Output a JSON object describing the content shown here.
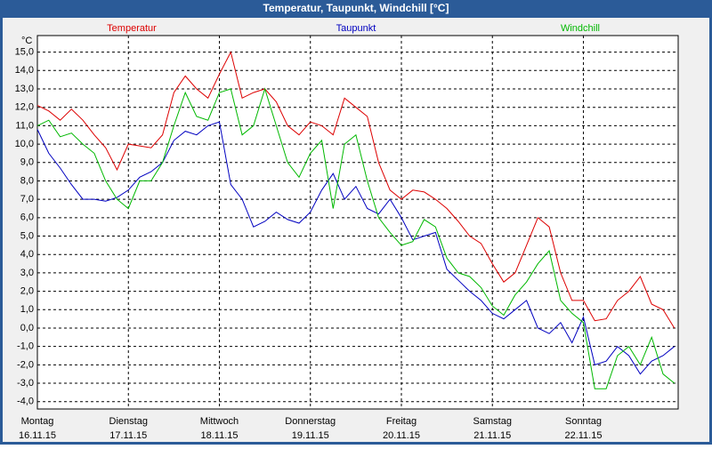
{
  "window_title": "Temperatur, Taupunkt, Windchill [°C]",
  "chart_data": {
    "type": "line",
    "unit_label": "°C",
    "x": [
      0,
      3,
      6,
      9,
      12,
      15,
      18,
      21,
      24,
      27,
      30,
      33,
      36,
      39,
      42,
      45,
      48,
      51,
      54,
      57,
      60,
      63,
      66,
      69,
      72,
      75,
      78,
      81,
      84,
      87,
      90,
      93,
      96,
      99,
      102,
      105,
      108,
      111,
      114,
      117,
      120,
      123,
      126,
      129,
      132,
      135,
      138,
      141,
      144,
      147,
      150,
      153,
      156,
      159,
      162,
      165,
      168
    ],
    "series": [
      {
        "name": "Temperatur",
        "color": "#dd0000",
        "values": [
          12.1,
          11.8,
          11.3,
          11.9,
          11.3,
          10.5,
          9.8,
          8.6,
          10.0,
          9.9,
          9.8,
          10.5,
          12.8,
          13.7,
          13.0,
          12.5,
          13.8,
          15.0,
          12.5,
          12.8,
          13.0,
          12.3,
          11.0,
          10.5,
          11.2,
          11.0,
          10.5,
          12.5,
          12.0,
          11.5,
          9.0,
          7.5,
          7.0,
          7.5,
          7.4,
          7.0,
          6.5,
          5.8,
          5.0,
          4.6,
          3.5,
          2.5,
          3.0,
          4.5,
          6.0,
          5.5,
          3.0,
          1.5,
          1.5,
          0.4,
          0.5,
          1.5,
          2.0,
          2.8,
          1.3,
          1.0,
          0.0
        ]
      },
      {
        "name": "Taupunkt",
        "color": "#0000c0",
        "values": [
          10.8,
          9.5,
          8.7,
          7.8,
          7.0,
          7.0,
          6.9,
          7.1,
          7.5,
          8.2,
          8.5,
          9.0,
          10.2,
          10.7,
          10.5,
          11.0,
          11.2,
          7.8,
          7.0,
          5.5,
          5.8,
          6.3,
          5.9,
          5.7,
          6.3,
          7.5,
          8.4,
          7.0,
          7.7,
          6.5,
          6.2,
          7.0,
          6.0,
          4.8,
          5.0,
          5.2,
          3.2,
          2.6,
          2.0,
          1.5,
          0.8,
          0.5,
          1.0,
          1.5,
          0.0,
          -0.3,
          0.3,
          -0.8,
          0.6,
          -2.0,
          -1.8,
          -1.0,
          -1.5,
          -2.5,
          -1.8,
          -1.5,
          -1.0
        ]
      },
      {
        "name": "Windchill",
        "color": "#00b800",
        "values": [
          11.0,
          11.3,
          10.4,
          10.6,
          10.0,
          9.5,
          8.0,
          7.0,
          6.5,
          8.0,
          8.0,
          9.0,
          11.0,
          12.8,
          11.5,
          11.3,
          12.8,
          13.0,
          10.5,
          11.0,
          13.0,
          11.0,
          9.0,
          8.2,
          9.5,
          10.2,
          6.5,
          10.0,
          10.5,
          8.0,
          6.0,
          5.2,
          4.5,
          4.7,
          5.9,
          5.5,
          3.8,
          3.0,
          2.8,
          2.2,
          1.2,
          0.7,
          1.8,
          2.5,
          3.5,
          4.2,
          1.5,
          0.8,
          0.3,
          -3.3,
          -3.3,
          -1.5,
          -1.0,
          -2.0,
          -0.5,
          -2.5,
          -3.0
        ]
      }
    ],
    "xlim": [
      0,
      169
    ],
    "xticks": [
      {
        "value": 0,
        "label": "Montag"
      },
      {
        "value": 24,
        "label": "Dienstag"
      },
      {
        "value": 48,
        "label": "Mittwoch"
      },
      {
        "value": 72,
        "label": "Donnerstag"
      },
      {
        "value": 96,
        "label": "Freitag"
      },
      {
        "value": 120,
        "label": "Samstag"
      },
      {
        "value": 144,
        "label": "Sonntag"
      }
    ],
    "xtick_dates": [
      "16.11.15",
      "17.11.15",
      "18.11.15",
      "19.11.15",
      "20.11.15",
      "21.11.15",
      "22.11.15"
    ],
    "ylim": [
      -4.4,
      15.9
    ],
    "yticks": [
      {
        "value": 15,
        "label": "15,0"
      },
      {
        "value": 14,
        "label": "14,0"
      },
      {
        "value": 13,
        "label": "13,0"
      },
      {
        "value": 12,
        "label": "12,0"
      },
      {
        "value": 11,
        "label": "11,0"
      },
      {
        "value": 10,
        "label": "10,0"
      },
      {
        "value": 9,
        "label": "9,0"
      },
      {
        "value": 8,
        "label": "8,0"
      },
      {
        "value": 7,
        "label": "7,0"
      },
      {
        "value": 6,
        "label": "6,0"
      },
      {
        "value": 5,
        "label": "5,0"
      },
      {
        "value": 4,
        "label": "4,0"
      },
      {
        "value": 3,
        "label": "3,0"
      },
      {
        "value": 2,
        "label": "2,0"
      },
      {
        "value": 1,
        "label": "1,0"
      },
      {
        "value": 0,
        "label": "0,0"
      },
      {
        "value": -1,
        "label": "-1,0"
      },
      {
        "value": -2,
        "label": "-2,0"
      },
      {
        "value": -3,
        "label": "-3,0"
      },
      {
        "value": -4,
        "label": "-4,0"
      }
    ],
    "grid": true
  }
}
